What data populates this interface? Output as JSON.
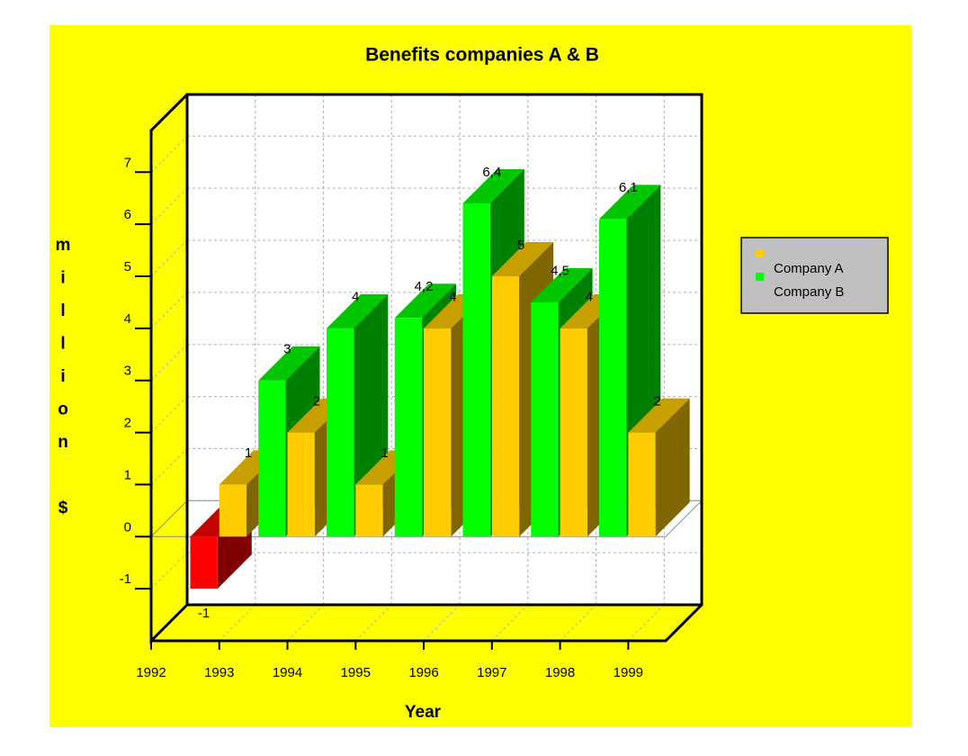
{
  "chart_data": {
    "type": "bar3d",
    "title": "Benefits companies A & B",
    "x_label": "Year",
    "y_label": "million $",
    "x": [
      1993,
      1994,
      1995,
      1996,
      1997,
      1998,
      1999
    ],
    "series": [
      {
        "name": "Company A",
        "color": "#ffcc00",
        "values": [
          1,
          2,
          1,
          4,
          5,
          4,
          2
        ]
      },
      {
        "name": "Company B",
        "color": "#00ff00",
        "values": [
          -1,
          3,
          4,
          4.2,
          6.4,
          4.5,
          6.1
        ],
        "value_labels": [
          "-1",
          "3",
          "4",
          "4,2",
          "6,4",
          "4,5",
          "6,1"
        ]
      }
    ],
    "negative_color": "#ff0000",
    "xlim": [
      1992,
      1999.55
    ],
    "xticks": [
      1992,
      1993,
      1994,
      1995,
      1996,
      1997,
      1998,
      1999
    ],
    "ylim": [
      -2,
      7.8
    ],
    "yticks": [
      -1,
      0,
      1,
      2,
      3,
      4,
      5,
      6,
      7
    ],
    "grid": true,
    "legend": "right",
    "background": "#ffff00"
  }
}
